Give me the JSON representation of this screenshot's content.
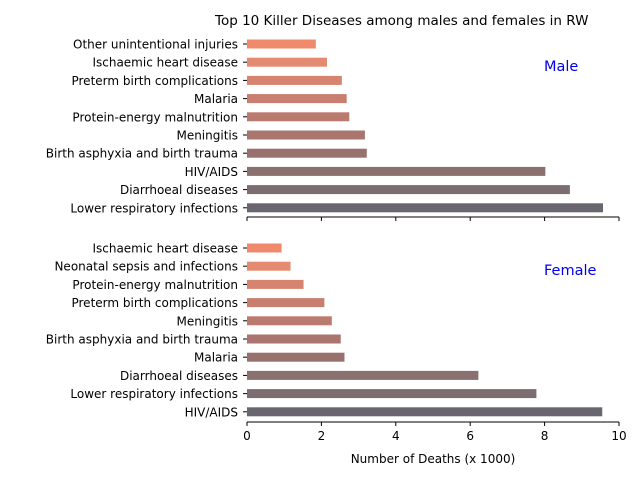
{
  "chart_data": [
    {
      "type": "bar",
      "orientation": "horizontal",
      "title": "Top 10 Killer Diseases among males and females in RW",
      "panel_label": "Male",
      "xlim": [
        0,
        10
      ],
      "categories": [
        "Other unintentional injuries",
        "Ischaemic heart disease",
        "Preterm birth complications",
        "Malaria",
        "Protein-energy malnutrition",
        "Meningitis",
        "Birth asphyxia and birth trauma",
        "HIV/AIDS",
        "Diarrhoeal diseases",
        "Lower respiratory infections"
      ],
      "values": [
        1.85,
        2.15,
        2.55,
        2.68,
        2.75,
        3.17,
        3.22,
        8.02,
        8.68,
        9.57
      ],
      "bar_colors": [
        "#ef8a6c",
        "#e38a71",
        "#d6846f",
        "#c97f6f",
        "#bb7a6f",
        "#aa756f",
        "#98716f",
        "#8a706f",
        "#7c6d70",
        "#6a6670"
      ]
    },
    {
      "type": "bar",
      "orientation": "horizontal",
      "panel_label": "Female",
      "xlabel": "Number of Deaths (x 1000)",
      "xlim": [
        0,
        10
      ],
      "xticks": [
        0,
        2,
        4,
        6,
        8,
        10
      ],
      "categories": [
        "Ischaemic heart disease",
        "Neonatal sepsis and infections",
        "Protein-energy malnutrition",
        "Preterm birth complications",
        "Meningitis",
        "Birth asphyxia and birth trauma",
        "Malaria",
        "Diarrhoeal diseases",
        "Lower respiratory infections",
        "HIV/AIDS"
      ],
      "values": [
        0.93,
        1.17,
        1.52,
        2.08,
        2.28,
        2.52,
        2.62,
        6.22,
        7.78,
        9.55
      ],
      "bar_colors": [
        "#ef8a6c",
        "#e38a71",
        "#d6846f",
        "#c97f6f",
        "#bb7a6f",
        "#aa756f",
        "#98716f",
        "#8a706f",
        "#7c6d70",
        "#6a6670"
      ]
    }
  ],
  "style": {
    "label_color": "#0000ee",
    "axis_color": "#000000"
  }
}
